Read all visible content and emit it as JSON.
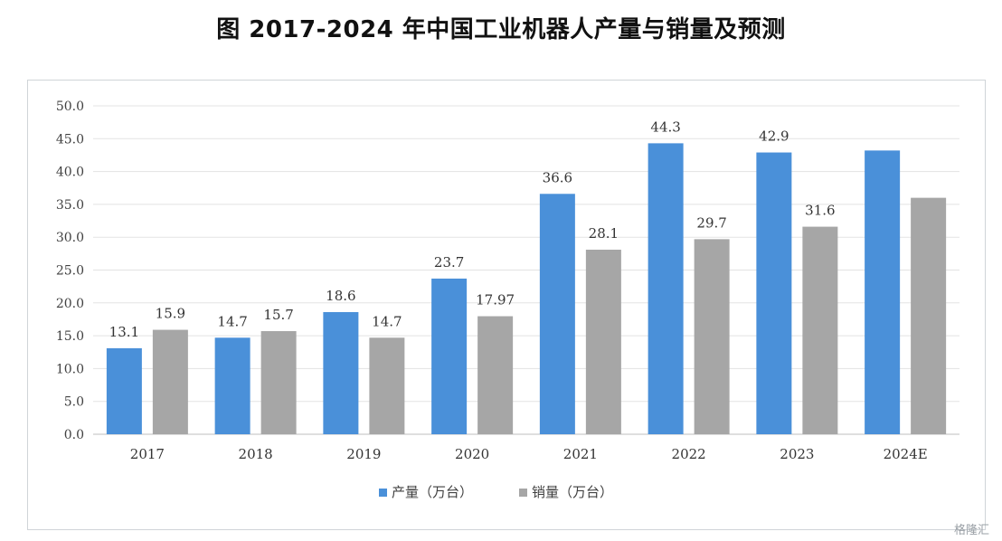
{
  "page": {
    "title": "图  2017-2024 年中国工业机器人产量与销量及预测",
    "watermark": "格隆汇"
  },
  "chart_data": {
    "type": "bar",
    "title": "图  2017-2024 年中国工业机器人产量与销量及预测",
    "categories": [
      "2017",
      "2018",
      "2019",
      "2020",
      "2021",
      "2022",
      "2023",
      "2024E"
    ],
    "series": [
      {
        "name": "产量（万台）",
        "color": "#4a90d9",
        "values": [
          13.1,
          14.7,
          18.6,
          23.7,
          36.6,
          44.3,
          42.9,
          43.2
        ],
        "labels": [
          "13.1",
          "14.7",
          "18.6",
          "23.7",
          "36.6",
          "44.3",
          "42.9",
          ""
        ]
      },
      {
        "name": "销量（万台）",
        "color": "#a6a6a6",
        "values": [
          15.9,
          15.7,
          14.7,
          17.97,
          28.1,
          29.7,
          31.6,
          36.0
        ],
        "labels": [
          "15.9",
          "15.7",
          "14.7",
          "17.97",
          "28.1",
          "29.7",
          "31.6",
          ""
        ]
      }
    ],
    "ylim": [
      0,
      50
    ],
    "yticks": [
      "0.0",
      "5.0",
      "10.0",
      "15.0",
      "20.0",
      "25.0",
      "30.0",
      "35.0",
      "40.0",
      "45.0",
      "50.0"
    ],
    "ytick_values": [
      0,
      5,
      10,
      15,
      20,
      25,
      30,
      35,
      40,
      45,
      50
    ],
    "grid": true,
    "legend_position": "bottom-center",
    "xlabel": "",
    "ylabel": ""
  }
}
